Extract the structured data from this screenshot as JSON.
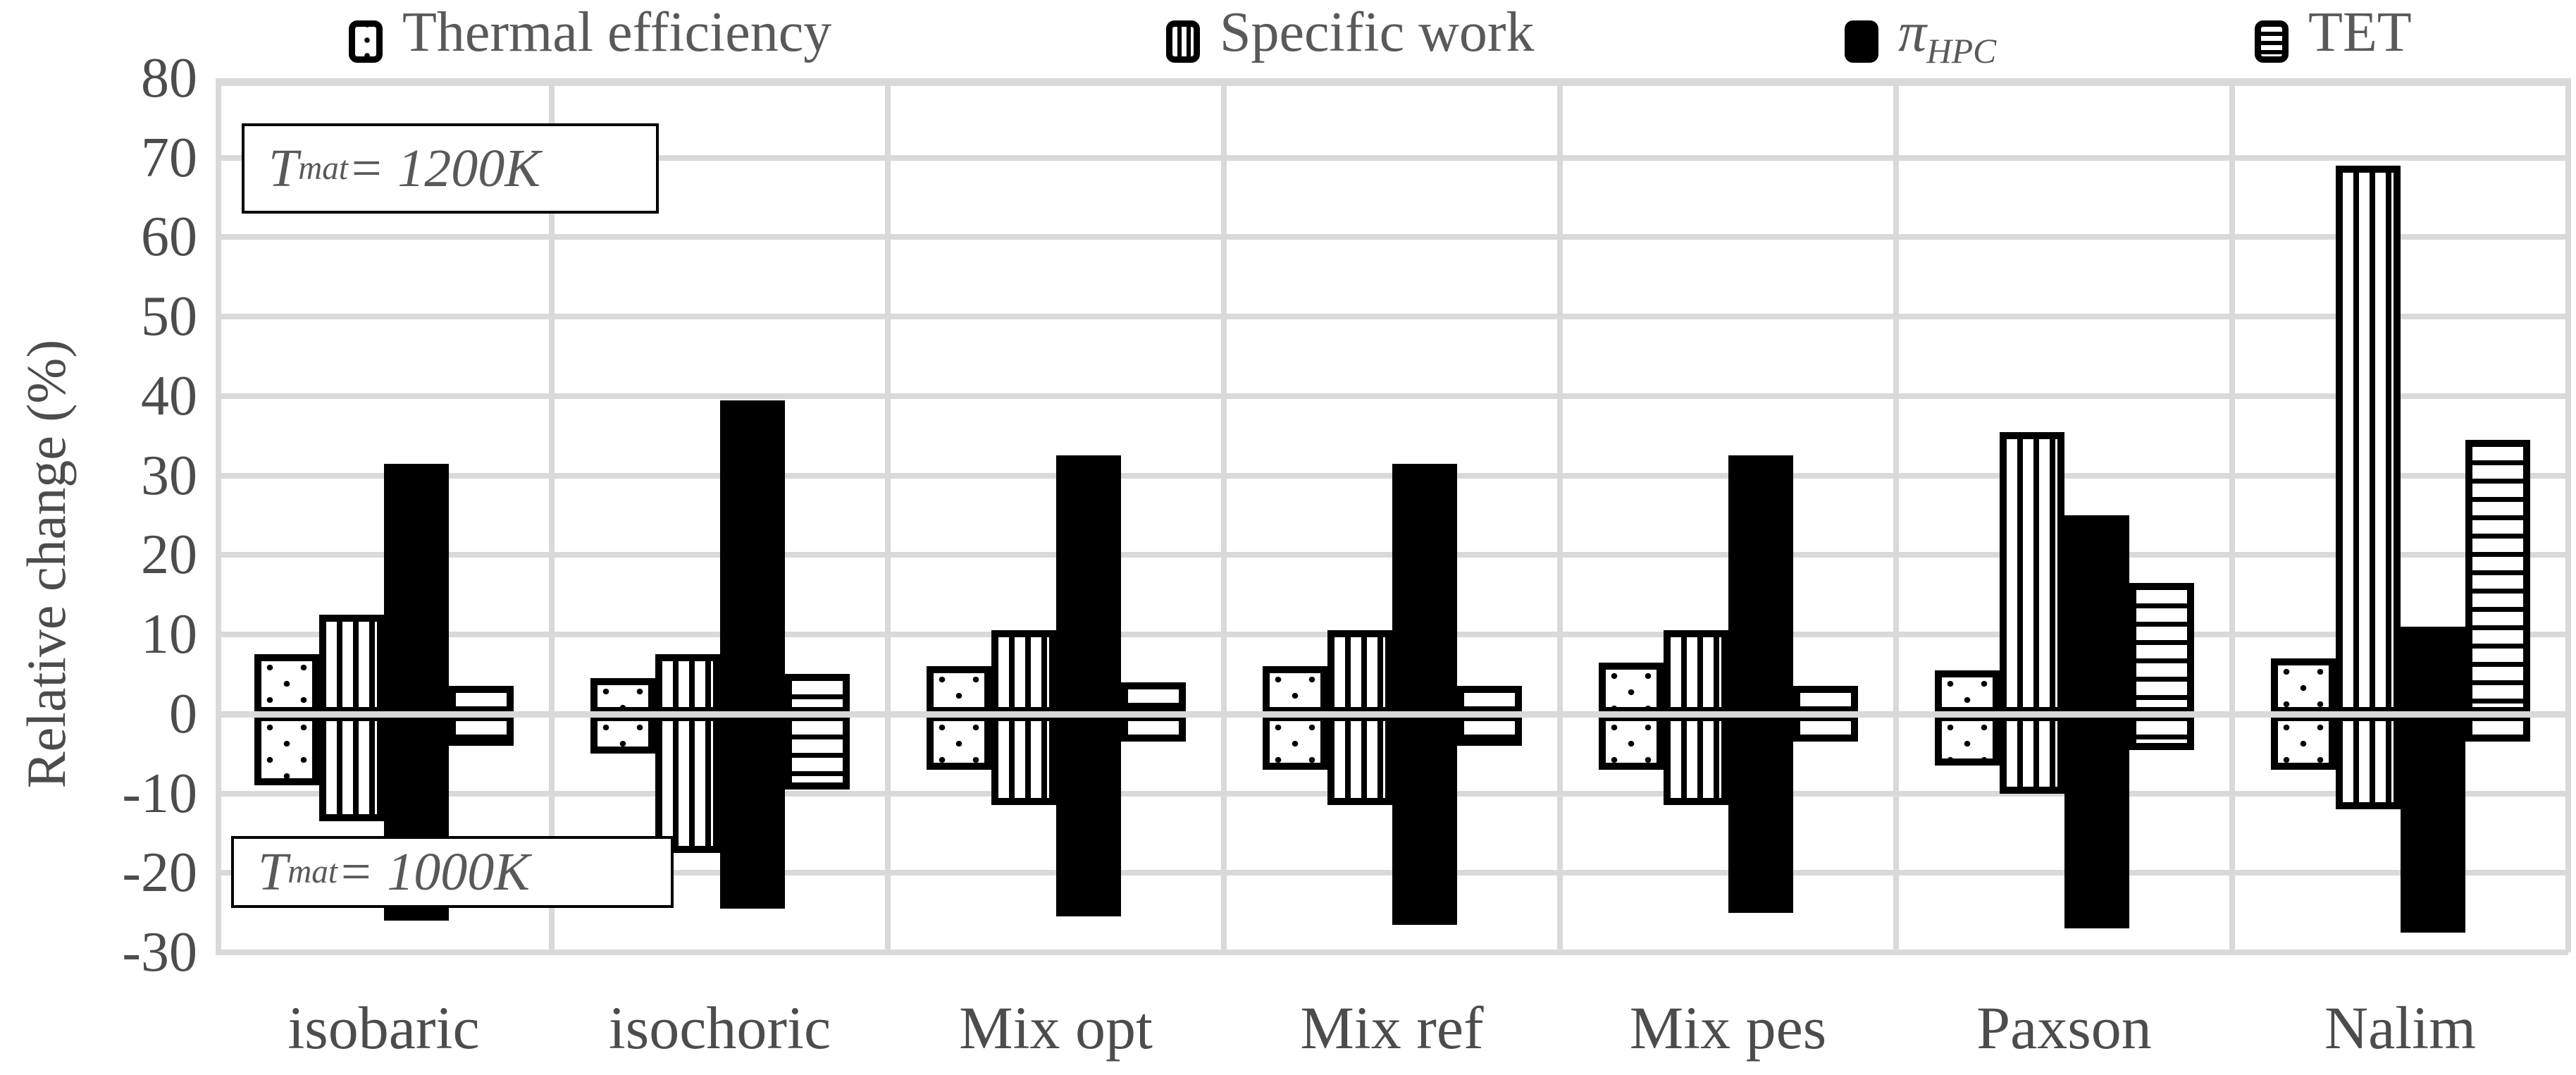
{
  "chart_data": {
    "type": "bar",
    "title": "",
    "ylabel": "Relative change (%)",
    "ylim": [
      -30,
      80
    ],
    "ytick_step": 10,
    "yticks": [
      80,
      70,
      60,
      50,
      40,
      30,
      20,
      10,
      0,
      -10,
      -20,
      -30
    ],
    "grid": true,
    "legend_position": "top",
    "categories": [
      "isobaric",
      "isochoric",
      "Mix opt",
      "Mix ref",
      "Mix pes",
      "Paxson",
      "Nalim"
    ],
    "series": [
      {
        "name": "Thermal efficiency",
        "pattern": "dots",
        "pos_Tmat_1200K": [
          7.5,
          4.5,
          6.0,
          6.0,
          6.5,
          5.5,
          7.0
        ],
        "neg_Tmat_1000K": [
          -9.0,
          -5.0,
          -7.0,
          -7.0,
          -7.0,
          -6.5,
          -7.0
        ]
      },
      {
        "name": "Specific work",
        "pattern": "vstripes",
        "pos_Tmat_1200K": [
          12.5,
          7.5,
          10.5,
          10.5,
          10.5,
          35.5,
          69.0
        ],
        "neg_Tmat_1000K": [
          -13.5,
          -17.5,
          -11.5,
          -11.5,
          -11.5,
          -10.0,
          -12.0
        ]
      },
      {
        "name": "π_HPC",
        "pattern": "solid",
        "pos_Tmat_1200K": [
          31.5,
          39.5,
          32.5,
          31.5,
          32.5,
          25.0,
          11.0
        ],
        "neg_Tmat_1000K": [
          -26.0,
          -24.5,
          -25.5,
          -26.5,
          -25.0,
          -27.0,
          -27.5
        ]
      },
      {
        "name": "TET",
        "pattern": "hstripes",
        "pos_Tmat_1200K": [
          3.5,
          5.0,
          4.0,
          3.5,
          3.5,
          16.5,
          34.5
        ],
        "neg_Tmat_1000K": [
          -4.0,
          -9.5,
          -3.5,
          -4.0,
          -3.5,
          -4.5,
          -3.5
        ]
      }
    ],
    "annotations": [
      {
        "prefix": "T",
        "sub": "mat",
        "rest": " = 1200K"
      },
      {
        "prefix": "T",
        "sub": "mat",
        "rest": " = 1000K"
      }
    ]
  },
  "legend": {
    "items": [
      {
        "label_main": "Thermal efficiency",
        "label_sub": ""
      },
      {
        "label_main": "Specific work",
        "label_sub": ""
      },
      {
        "label_main": "π",
        "label_sub": "HPC"
      },
      {
        "label_main": "TET",
        "label_sub": ""
      }
    ]
  },
  "axis": {
    "y_title": "Relative change (%)"
  },
  "colors": {
    "grid": "#d9d9d9",
    "bar_fill": "#000000",
    "text_axis": "#4c4c4c",
    "text_legend": "#595959",
    "background": "#ffffff"
  }
}
